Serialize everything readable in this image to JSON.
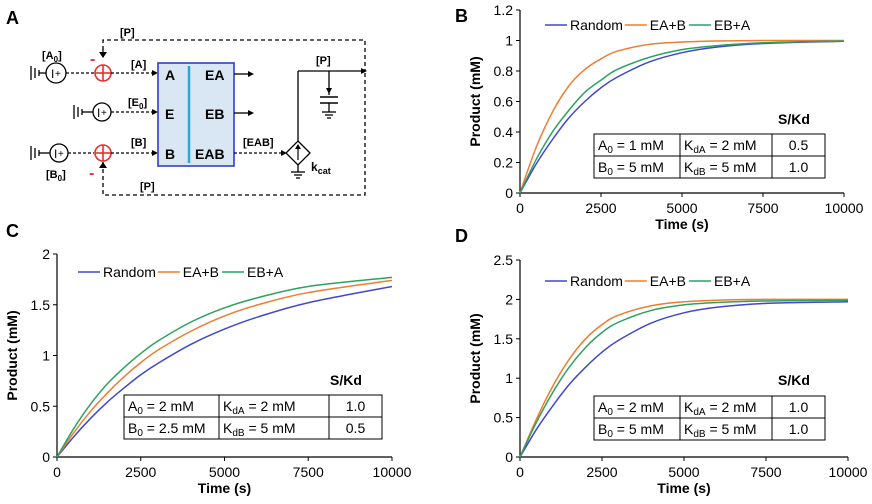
{
  "panels": {
    "A": {
      "letter": "A"
    },
    "B": {
      "letter": "B"
    },
    "C": {
      "letter": "C"
    },
    "D": {
      "letter": "D"
    }
  },
  "circuit": {
    "node_P_top": "[P]",
    "node_P_bottom": "[P]",
    "node_P_right": "[P]",
    "source_A": "A",
    "source_A_sub": "0",
    "source_B": "B",
    "source_B_sub": "0",
    "wire_A": "[A]",
    "wire_E": "[E",
    "wire_E_sub": "0",
    "wire_E_end": "]",
    "wire_B": "[B]",
    "wire_EAB": "[EAB]",
    "minus_top": "-",
    "minus_bottom": "-",
    "box_left": [
      "A",
      "E",
      "B"
    ],
    "box_right": [
      "EA",
      "EB",
      "EAB"
    ],
    "kcat": "k",
    "kcat_sub": "cat",
    "colors": {
      "box_fill": "#d9e7f5",
      "box_stroke": "#2f3ec9",
      "divider": "#2ea3dc",
      "summer": "#e5302b"
    }
  },
  "chart_data": [
    {
      "panel": "B",
      "type": "line",
      "title": "",
      "xlabel": "Time (s)",
      "ylabel": "Product (mM)",
      "xlim": [
        0,
        10000
      ],
      "ylim": [
        0,
        1.2
      ],
      "xticks": [
        "0",
        "2500",
        "5000",
        "7500",
        "10000"
      ],
      "yticks": [
        "0",
        "0.2",
        "0.4",
        "0.6",
        "0.8",
        "1",
        "1.2"
      ],
      "legend": [
        "Random",
        "EA+B",
        "EB+A"
      ],
      "series": [
        {
          "name": "Random",
          "color": "#3f48cc",
          "x": [
            0,
            500,
            1000,
            1500,
            2000,
            2500,
            3000,
            4000,
            5000,
            6000,
            7500,
            10000
          ],
          "y": [
            0,
            0.19,
            0.35,
            0.49,
            0.6,
            0.69,
            0.76,
            0.86,
            0.92,
            0.955,
            0.98,
            0.995
          ]
        },
        {
          "name": "EA+B",
          "color": "#ed7d31",
          "x": [
            0,
            500,
            1000,
            1500,
            2000,
            2500,
            3000,
            4000,
            5000,
            6000,
            7500,
            10000
          ],
          "y": [
            0,
            0.3,
            0.53,
            0.7,
            0.81,
            0.88,
            0.93,
            0.975,
            0.99,
            0.997,
            1.0,
            1.0
          ]
        },
        {
          "name": "EB+A",
          "color": "#2ca25f",
          "x": [
            0,
            500,
            1000,
            1500,
            2000,
            2500,
            3000,
            4000,
            5000,
            6000,
            7500,
            10000
          ],
          "y": [
            0,
            0.22,
            0.4,
            0.54,
            0.66,
            0.74,
            0.81,
            0.89,
            0.94,
            0.965,
            0.985,
            0.997
          ]
        }
      ],
      "table": {
        "header": "S/Kd",
        "rows": [
          {
            "s": "A",
            "s_sub": "0",
            "s_val": " = 1 mM",
            "k": "K",
            "k_sub": "dA",
            "k_val": " = 2 mM",
            "ratio": "0.5"
          },
          {
            "s": "B",
            "s_sub": "0",
            "s_val": " = 5 mM",
            "k": "K",
            "k_sub": "dB",
            "k_val": " = 5 mM",
            "ratio": "1.0"
          }
        ]
      }
    },
    {
      "panel": "C",
      "type": "line",
      "title": "",
      "xlabel": "Time (s)",
      "ylabel": "Product (mM)",
      "xlim": [
        0,
        10000
      ],
      "ylim": [
        0,
        2
      ],
      "xticks": [
        "0",
        "2500",
        "5000",
        "7500",
        "10000"
      ],
      "yticks": [
        "0",
        "0.5",
        "1",
        "1.5",
        "2"
      ],
      "legend": [
        "Random",
        "EA+B",
        "EB+A"
      ],
      "series": [
        {
          "name": "Random",
          "color": "#3f48cc",
          "x": [
            0,
            500,
            1000,
            1500,
            2000,
            2500,
            3000,
            4000,
            5000,
            6000,
            7500,
            10000
          ],
          "y": [
            0,
            0.2,
            0.38,
            0.54,
            0.68,
            0.81,
            0.92,
            1.11,
            1.26,
            1.38,
            1.52,
            1.68
          ]
        },
        {
          "name": "EA+B",
          "color": "#ed7d31",
          "x": [
            0,
            500,
            1000,
            1500,
            2000,
            2500,
            3000,
            4000,
            5000,
            6000,
            7500,
            10000
          ],
          "y": [
            0,
            0.24,
            0.45,
            0.63,
            0.79,
            0.93,
            1.05,
            1.24,
            1.39,
            1.5,
            1.62,
            1.74
          ]
        },
        {
          "name": "EB+A",
          "color": "#2ca25f",
          "x": [
            0,
            500,
            1000,
            1500,
            2000,
            2500,
            3000,
            4000,
            5000,
            6000,
            7500,
            10000
          ],
          "y": [
            0,
            0.28,
            0.52,
            0.72,
            0.88,
            1.02,
            1.14,
            1.33,
            1.47,
            1.57,
            1.68,
            1.77
          ]
        }
      ],
      "table": {
        "header": "S/Kd",
        "rows": [
          {
            "s": "A",
            "s_sub": "0",
            "s_val": " = 2 mM",
            "k": "K",
            "k_sub": "dA",
            "k_val": " = 2 mM",
            "ratio": "1.0"
          },
          {
            "s": "B",
            "s_sub": "0",
            "s_val": " = 2.5 mM",
            "k": "K",
            "k_sub": "dB",
            "k_val": " = 5 mM",
            "ratio": "0.5"
          }
        ]
      }
    },
    {
      "panel": "D",
      "type": "line",
      "title": "",
      "xlabel": "Time (s)",
      "ylabel": "Product (mM)",
      "xlim": [
        0,
        10000
      ],
      "ylim": [
        0,
        2.5
      ],
      "xticks": [
        "0",
        "2500",
        "5000",
        "7500",
        "10000"
      ],
      "yticks": [
        "0",
        "0.5",
        "1",
        "1.5",
        "2",
        "2.5"
      ],
      "legend": [
        "Random",
        "EA+B",
        "EB+A"
      ],
      "series": [
        {
          "name": "Random",
          "color": "#3f48cc",
          "x": [
            0,
            500,
            1000,
            1500,
            2000,
            2500,
            3000,
            4000,
            5000,
            6000,
            7500,
            10000
          ],
          "y": [
            0,
            0.35,
            0.65,
            0.92,
            1.14,
            1.33,
            1.48,
            1.7,
            1.83,
            1.9,
            1.95,
            1.97
          ]
        },
        {
          "name": "EA+B",
          "color": "#ed7d31",
          "x": [
            0,
            500,
            1000,
            1500,
            2000,
            2500,
            3000,
            4000,
            5000,
            6000,
            7500,
            10000
          ],
          "y": [
            0,
            0.48,
            0.9,
            1.24,
            1.5,
            1.68,
            1.8,
            1.92,
            1.97,
            1.99,
            2.0,
            2.0
          ]
        },
        {
          "name": "EB+A",
          "color": "#2ca25f",
          "x": [
            0,
            500,
            1000,
            1500,
            2000,
            2500,
            3000,
            4000,
            5000,
            6000,
            7500,
            10000
          ],
          "y": [
            0,
            0.44,
            0.82,
            1.14,
            1.39,
            1.58,
            1.71,
            1.86,
            1.93,
            1.96,
            1.98,
            1.99
          ]
        }
      ],
      "table": {
        "header": "S/Kd",
        "rows": [
          {
            "s": "A",
            "s_sub": "0",
            "s_val": " = 2 mM",
            "k": "K",
            "k_sub": "dA",
            "k_val": " = 2 mM",
            "ratio": "1.0"
          },
          {
            "s": "B",
            "s_sub": "0",
            "s_val": " = 5 mM",
            "k": "K",
            "k_sub": "dB",
            "k_val": " = 5 mM",
            "ratio": "1.0"
          }
        ]
      }
    }
  ]
}
